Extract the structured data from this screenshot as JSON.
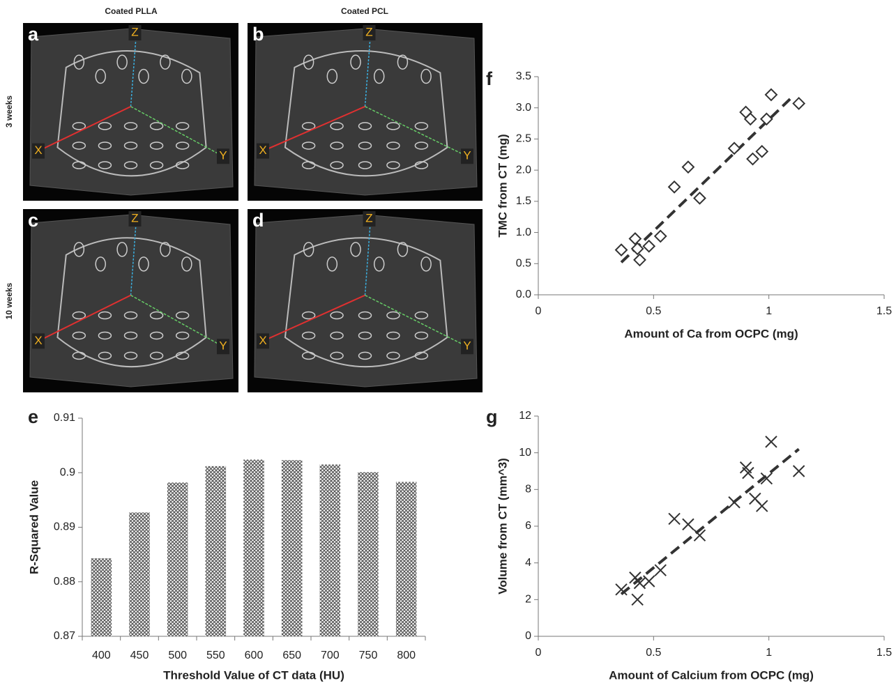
{
  "figure": {
    "column_headers": [
      "Coated PLLA",
      "Coated PCL"
    ],
    "row_headers": [
      "3 weeks",
      "10 weeks"
    ],
    "panels": [
      {
        "letter": "a",
        "axis_labels": [
          "X",
          "Y",
          "Z"
        ]
      },
      {
        "letter": "b",
        "axis_labels": [
          "X",
          "Y",
          "Z"
        ]
      },
      {
        "letter": "c",
        "axis_labels": [
          "X",
          "Y",
          "Z"
        ]
      },
      {
        "letter": "d",
        "axis_labels": [
          "X",
          "Y",
          "Z"
        ]
      }
    ]
  },
  "chart_data": [
    {
      "type": "bar",
      "panel_label": "e",
      "x_label": "Threshold Value of CT data (HU)",
      "y_label": "R-Squared Value",
      "categories": [
        "400",
        "450",
        "500",
        "550",
        "600",
        "650",
        "700",
        "750",
        "800"
      ],
      "values": [
        0.8843,
        0.8927,
        0.8982,
        0.9012,
        0.9024,
        0.9023,
        0.9015,
        0.9001,
        0.8983
      ],
      "color": "#555555",
      "ylim": [
        0.87,
        0.91
      ],
      "yticks": [
        0.87,
        0.88,
        0.89,
        0.9,
        0.91
      ],
      "grid": false
    },
    {
      "type": "scatter",
      "panel_label": "f",
      "x_label": "Amount of Ca from OCPC (mg)",
      "y_label": "TMC from CT (mg)",
      "marker": "diamond",
      "color": "#333333",
      "x": [
        0.36,
        0.42,
        0.43,
        0.44,
        0.48,
        0.53,
        0.59,
        0.65,
        0.7,
        0.85,
        0.9,
        0.92,
        0.93,
        0.97,
        0.99,
        1.01,
        1.13
      ],
      "values": [
        0.72,
        0.9,
        0.74,
        0.56,
        0.78,
        0.94,
        1.73,
        2.05,
        1.55,
        2.35,
        2.93,
        2.82,
        2.18,
        2.3,
        2.82,
        3.21,
        3.07
      ],
      "trendline": {
        "x": [
          0.36,
          1.1
        ],
        "y": [
          0.52,
          3.17
        ]
      },
      "xlim": [
        0,
        1.5
      ],
      "xticks": [
        0,
        0.5,
        1,
        1.5
      ],
      "ylim": [
        0,
        3.5
      ],
      "yticks": [
        {
          "value": 0,
          "label": "0.0"
        },
        0.5,
        {
          "value": 1,
          "label": "1.0"
        },
        1.5,
        {
          "value": 2,
          "label": "2.0"
        },
        2.5,
        {
          "value": 3,
          "label": "3.0"
        },
        3.5
      ]
    },
    {
      "type": "scatter",
      "panel_label": "g",
      "x_label": "Amount of Calcium from OCPC (mg)",
      "y_label": "Volume from CT (mm^3)",
      "marker": "x",
      "color": "#333333",
      "x": [
        0.36,
        0.42,
        0.43,
        0.44,
        0.48,
        0.53,
        0.59,
        0.65,
        0.7,
        0.85,
        0.9,
        0.91,
        0.94,
        0.97,
        0.99,
        1.01,
        1.13
      ],
      "values": [
        2.55,
        3.2,
        2.0,
        2.9,
        3.0,
        3.6,
        6.4,
        6.1,
        5.5,
        7.3,
        9.2,
        8.9,
        7.5,
        7.1,
        8.6,
        10.6,
        9.0
      ],
      "trendline": {
        "x": [
          0.36,
          1.13
        ],
        "y": [
          2.3,
          10.2
        ]
      },
      "xlim": [
        0,
        1.5
      ],
      "xticks": [
        0,
        0.5,
        1,
        1.5
      ],
      "ylim": [
        0,
        12
      ],
      "yticks": [
        0,
        2,
        4,
        6,
        8,
        10,
        12
      ]
    }
  ]
}
